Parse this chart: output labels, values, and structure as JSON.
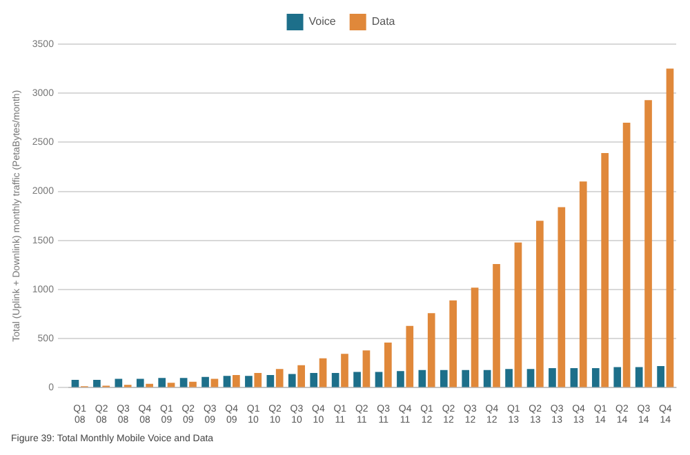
{
  "chart_data": {
    "type": "bar",
    "ylabel": "Total (Uplink + Downlink) monthly traffic (PetaBytes/month)",
    "categories": [
      "Q1 08",
      "Q2 08",
      "Q3 08",
      "Q4 08",
      "Q1 09",
      "Q2 09",
      "Q3 09",
      "Q4 09",
      "Q1 10",
      "Q2 10",
      "Q3 10",
      "Q4 10",
      "Q1 11",
      "Q2 11",
      "Q3 11",
      "Q4 11",
      "Q1 12",
      "Q2 12",
      "Q3 12",
      "Q4 12",
      "Q1 13",
      "Q2 13",
      "Q3 13",
      "Q4 13",
      "Q1 14",
      "Q2 14",
      "Q3 14",
      "Q4 14"
    ],
    "series": [
      {
        "name": "Voice",
        "color": "#1d6f8a",
        "values": [
          80,
          80,
          90,
          90,
          100,
          100,
          110,
          120,
          120,
          130,
          140,
          150,
          150,
          160,
          160,
          170,
          180,
          180,
          180,
          180,
          190,
          190,
          200,
          200,
          200,
          210,
          210,
          220
        ]
      },
      {
        "name": "Data",
        "color": "#e0883a",
        "values": [
          15,
          20,
          30,
          40,
          50,
          60,
          90,
          130,
          150,
          190,
          230,
          300,
          345,
          380,
          460,
          630,
          760,
          890,
          1020,
          1260,
          1480,
          1700,
          1840,
          2100,
          2390,
          2700,
          2930,
          3250
        ]
      }
    ],
    "ylim": [
      0,
      3500
    ],
    "yticks": [
      0,
      500,
      1000,
      1500,
      2000,
      2500,
      3000,
      3500
    ],
    "grid": "y",
    "legend": "top",
    "annotations": [
      "Figure 39: Total Monthly Mobile Voice and Data"
    ]
  }
}
